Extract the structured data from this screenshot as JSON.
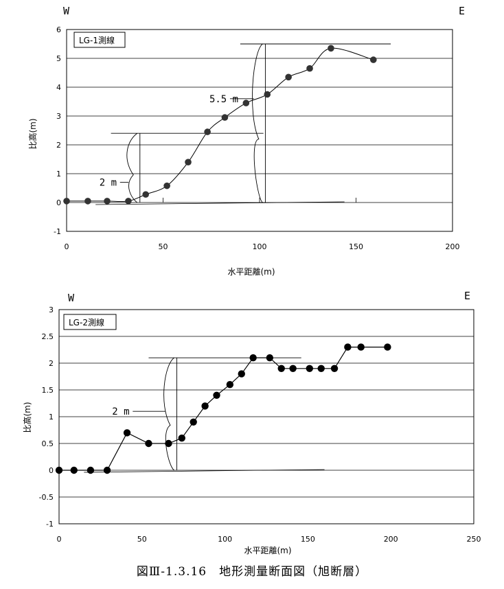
{
  "caption": "図Ⅲ-1.3.16　地形測量断面図（旭断層）",
  "chart_data": [
    {
      "type": "line",
      "legend": "LG-1測線",
      "direction_left": "W",
      "direction_right": "E",
      "xlabel": "水平距離(m)",
      "ylabel": "比高(m)",
      "xlim": [
        0,
        200
      ],
      "ylim": [
        -1,
        6
      ],
      "xticks": [
        "0",
        "50",
        "100",
        "150",
        "200"
      ],
      "yticks": [
        "-1",
        "0",
        "1",
        "2",
        "3",
        "4",
        "5",
        "6"
      ],
      "grid": "horizontal",
      "line_style": "smooth",
      "x": [
        0,
        11,
        21,
        32,
        41,
        52,
        63,
        73,
        82,
        93,
        104,
        115,
        126,
        137,
        159
      ],
      "y": [
        0.05,
        0.05,
        0.05,
        0.05,
        0.28,
        0.58,
        1.4,
        2.45,
        2.95,
        3.45,
        3.75,
        4.35,
        4.65,
        5.35,
        4.95
      ],
      "annotations": [
        {
          "label": "2 m",
          "x_top": 38,
          "x_bottom": 38,
          "top": 2.4,
          "bottom": 0,
          "x_label": 17,
          "y_label": 0.7
        },
        {
          "label": "5.5 m",
          "x_top": 103,
          "x_bottom": 103,
          "top": 5.5,
          "bottom": 0,
          "x_label": 74,
          "y_label": 3.6
        }
      ]
    },
    {
      "type": "line",
      "legend": "LG-2測線",
      "direction_left": "W",
      "direction_right": "E",
      "xlabel": "水平距離(m)",
      "ylabel": "比高(m)",
      "xlim": [
        0,
        250
      ],
      "ylim": [
        -1,
        3
      ],
      "xticks": [
        "0",
        "50",
        "100",
        "150",
        "200",
        "250"
      ],
      "yticks": [
        "-1",
        "-0.5",
        "0",
        "0.5",
        "1",
        "1.5",
        "2",
        "2.5",
        "3"
      ],
      "grid": "horizontal",
      "line_style": "straight",
      "x": [
        0,
        9,
        19,
        29,
        41,
        54,
        66,
        74,
        81,
        88,
        95,
        103,
        110,
        117,
        127,
        134,
        141,
        151,
        158,
        166,
        174,
        182,
        198
      ],
      "y": [
        0,
        0,
        0,
        0,
        0.7,
        0.5,
        0.5,
        0.6,
        0.9,
        1.2,
        1.4,
        1.6,
        1.8,
        2.1,
        2.1,
        1.9,
        1.9,
        1.9,
        1.9,
        1.9,
        2.3,
        2.3,
        2.3
      ],
      "annotations": [
        {
          "label": "2 m",
          "x_top": 71,
          "x_bottom": 71,
          "top": 2.1,
          "bottom": 0,
          "x_label": 32,
          "y_label": 1.1
        }
      ]
    }
  ]
}
